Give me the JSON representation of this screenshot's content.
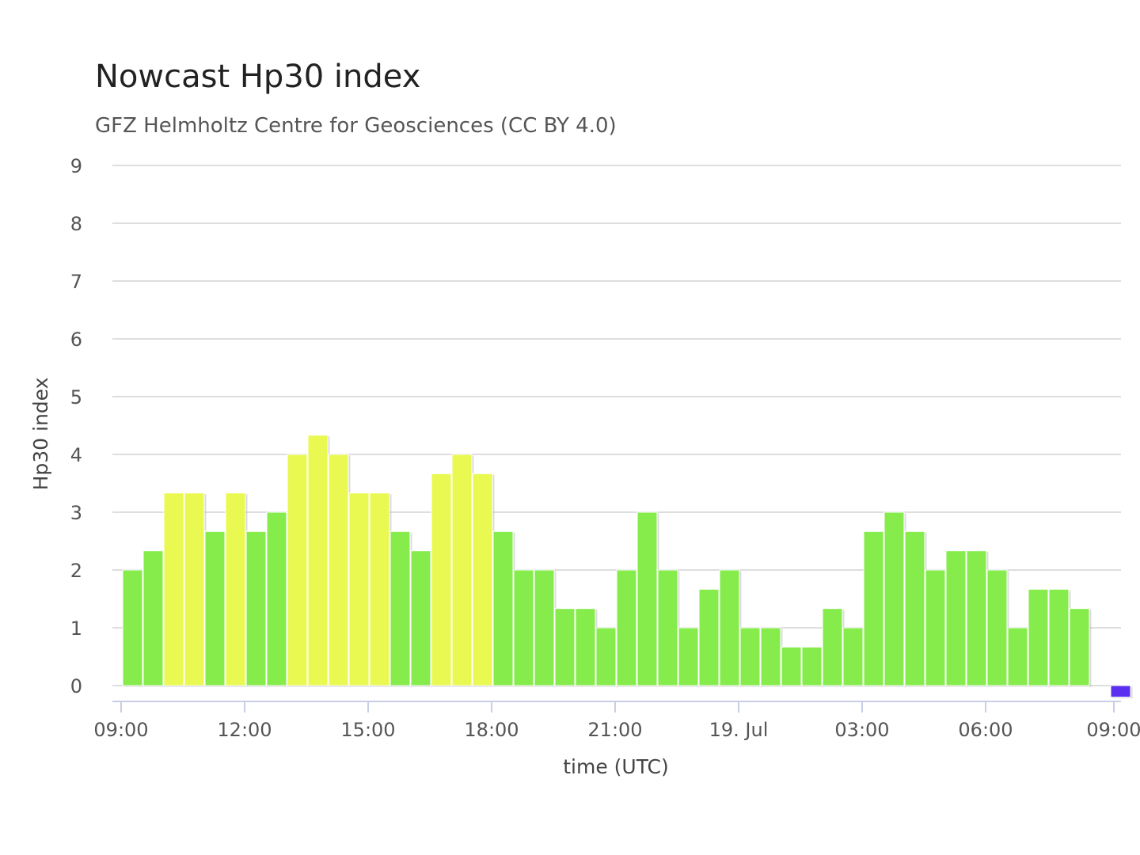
{
  "chart_data": {
    "type": "bar",
    "title": "Nowcast Hp30 index",
    "subtitle": "GFZ Helmholtz Centre for Geosciences (CC BY 4.0)",
    "xlabel": "time (UTC)",
    "ylabel": "Hp30 index",
    "ylim": [
      0,
      9
    ],
    "y_ticks": [
      "0",
      "1",
      "2",
      "3",
      "4",
      "5",
      "6",
      "7",
      "8",
      "9"
    ],
    "x_ticks": [
      "09:00",
      "12:00",
      "15:00",
      "18:00",
      "21:00",
      "19. Jul",
      "03:00",
      "06:00",
      "09:00"
    ],
    "grid": true,
    "categories": [
      "09:00",
      "09:30",
      "10:00",
      "10:30",
      "11:00",
      "11:30",
      "12:00",
      "12:30",
      "13:00",
      "13:30",
      "14:00",
      "14:30",
      "15:00",
      "15:30",
      "16:00",
      "16:30",
      "17:00",
      "17:30",
      "18:00",
      "18:30",
      "19:00",
      "19:30",
      "20:00",
      "20:30",
      "21:00",
      "21:30",
      "22:00",
      "22:30",
      "23:00",
      "23:30",
      "00:00",
      "00:30",
      "01:00",
      "01:30",
      "02:00",
      "02:30",
      "03:00",
      "03:30",
      "04:00",
      "04:30",
      "05:00",
      "05:30",
      "06:00",
      "06:30",
      "07:00",
      "07:30",
      "08:00",
      "08:30",
      "09:00"
    ],
    "values": [
      2.0,
      2.333,
      3.333,
      3.333,
      2.667,
      3.333,
      2.667,
      3.0,
      4.0,
      4.333,
      4.0,
      3.333,
      3.333,
      2.667,
      2.333,
      3.667,
      4.0,
      3.667,
      2.667,
      2.0,
      2.0,
      1.333,
      1.333,
      1.0,
      2.0,
      3.0,
      2.0,
      1.0,
      1.667,
      2.0,
      1.0,
      1.0,
      0.667,
      0.667,
      1.333,
      1.0,
      2.667,
      3.0,
      2.667,
      2.0,
      2.333,
      2.333,
      2.0,
      1.0,
      1.667,
      1.667,
      1.333,
      null,
      -0.2
    ],
    "bar_colors": [
      "#86ec4c",
      "#86ec4c",
      "#e9f952",
      "#e9f952",
      "#86ec4c",
      "#e9f952",
      "#86ec4c",
      "#86ec4c",
      "#e9f952",
      "#e9f952",
      "#e9f952",
      "#e9f952",
      "#e9f952",
      "#86ec4c",
      "#86ec4c",
      "#e9f952",
      "#e9f952",
      "#e9f952",
      "#86ec4c",
      "#86ec4c",
      "#86ec4c",
      "#86ec4c",
      "#86ec4c",
      "#86ec4c",
      "#86ec4c",
      "#86ec4c",
      "#86ec4c",
      "#86ec4c",
      "#86ec4c",
      "#86ec4c",
      "#86ec4c",
      "#86ec4c",
      "#86ec4c",
      "#86ec4c",
      "#86ec4c",
      "#86ec4c",
      "#86ec4c",
      "#86ec4c",
      "#86ec4c",
      "#86ec4c",
      "#86ec4c",
      "#86ec4c",
      "#86ec4c",
      "#86ec4c",
      "#86ec4c",
      "#86ec4c",
      "#86ec4c",
      "#86ec4c",
      "#5a2ff0"
    ],
    "colors": {
      "green": "#86ec4c",
      "yellow": "#e9f952",
      "nowcast_pending": "#5a2ff0",
      "grid": "#dedede",
      "axis": "#c9cde8"
    }
  }
}
